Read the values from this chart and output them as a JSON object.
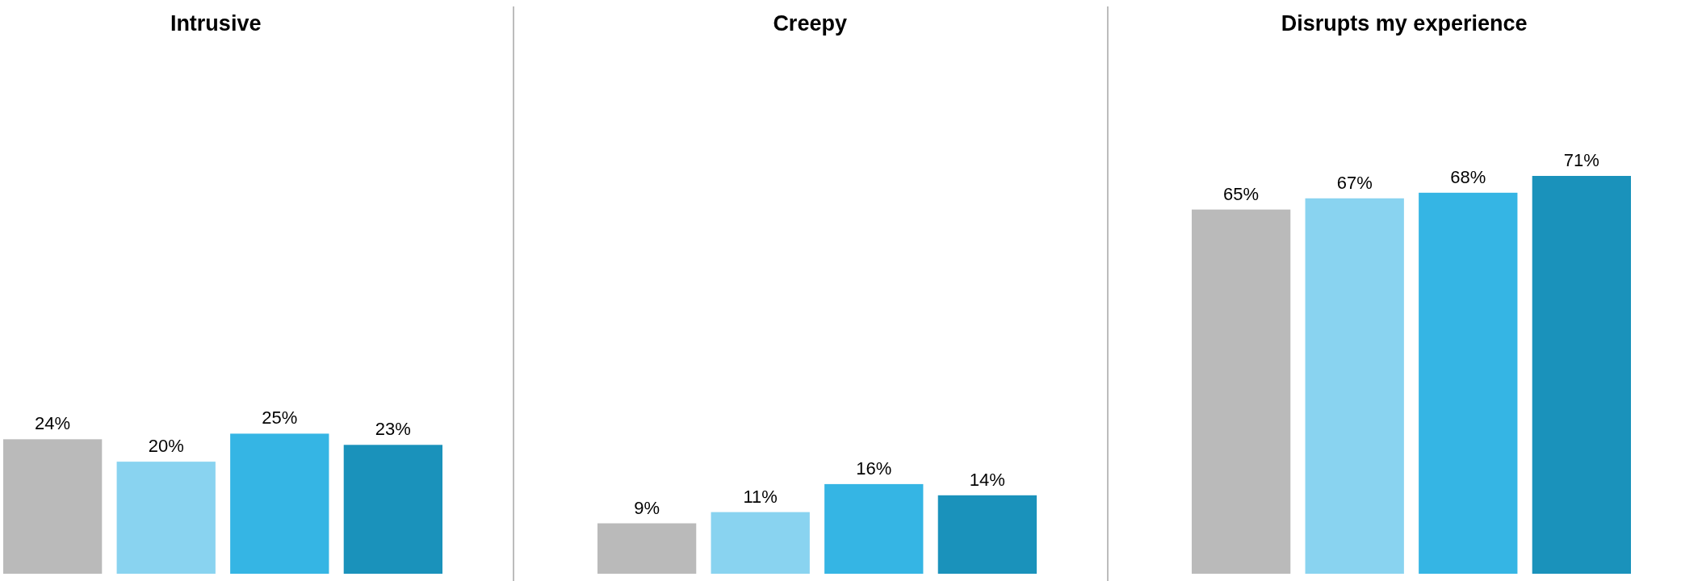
{
  "chart_data": [
    {
      "type": "bar",
      "title": "Intrusive",
      "categories": [
        null,
        null,
        null,
        null
      ],
      "values": [
        24,
        20,
        25,
        23
      ],
      "colors": [
        "#bababa",
        "#89d3f0",
        "#35b5e4",
        "#1a92bb"
      ],
      "value_labels": [
        "24%",
        "20%",
        "25%",
        "23%"
      ]
    },
    {
      "type": "bar",
      "title": "Creepy",
      "categories": [
        null,
        null,
        null,
        null
      ],
      "values": [
        9,
        11,
        16,
        14
      ],
      "colors": [
        "#bababa",
        "#89d3f0",
        "#35b5e4",
        "#1a92bb"
      ],
      "value_labels": [
        "9%",
        "11%",
        "16%",
        "14%"
      ]
    },
    {
      "type": "bar",
      "title": "Disrupts my experience",
      "categories": [
        null,
        null,
        null,
        null
      ],
      "values": [
        65,
        67,
        68,
        71
      ],
      "colors": [
        "#bababa",
        "#89d3f0",
        "#35b5e4",
        "#1a92bb"
      ],
      "value_labels": [
        "65%",
        "67%",
        "68%",
        "71%"
      ]
    }
  ]
}
